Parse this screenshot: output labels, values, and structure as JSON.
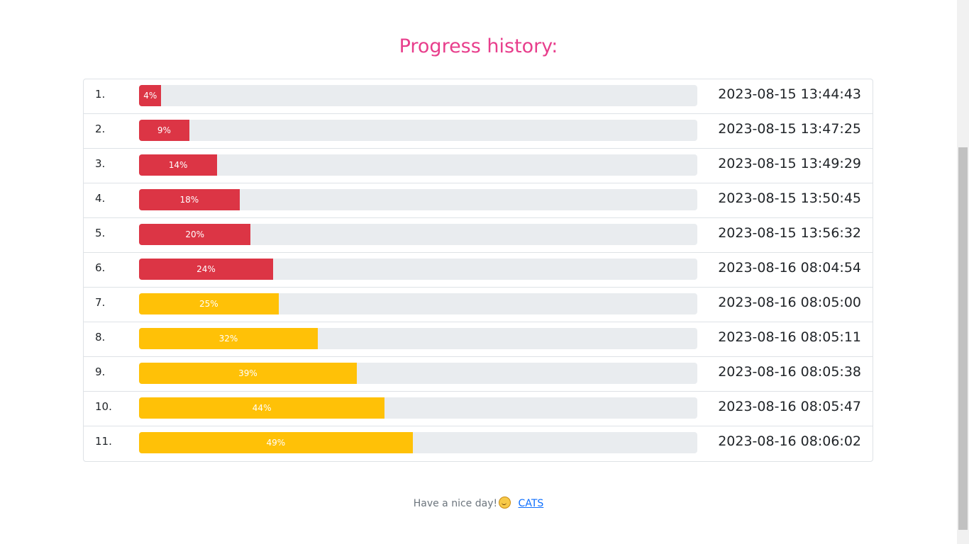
{
  "title": "Progress history:",
  "colors": {
    "low": "#dc3545",
    "mid": "#ffc107"
  },
  "rows": [
    {
      "index": "1.",
      "label": "4%",
      "value": 4,
      "tone": "low",
      "time": "2023-08-15 13:44:43"
    },
    {
      "index": "2.",
      "label": "9%",
      "value": 9,
      "tone": "low",
      "time": "2023-08-15 13:47:25"
    },
    {
      "index": "3.",
      "label": "14%",
      "value": 14,
      "tone": "low",
      "time": "2023-08-15 13:49:29"
    },
    {
      "index": "4.",
      "label": "18%",
      "value": 18,
      "tone": "low",
      "time": "2023-08-15 13:50:45"
    },
    {
      "index": "5.",
      "label": "20%",
      "value": 20,
      "tone": "low",
      "time": "2023-08-15 13:56:32"
    },
    {
      "index": "6.",
      "label": "24%",
      "value": 24,
      "tone": "low",
      "time": "2023-08-16 08:04:54"
    },
    {
      "index": "7.",
      "label": "25%",
      "value": 25,
      "tone": "mid",
      "time": "2023-08-16 08:05:00"
    },
    {
      "index": "8.",
      "label": "32%",
      "value": 32,
      "tone": "mid",
      "time": "2023-08-16 08:05:11"
    },
    {
      "index": "9.",
      "label": "39%",
      "value": 39,
      "tone": "mid",
      "time": "2023-08-16 08:05:38"
    },
    {
      "index": "10.",
      "label": "44%",
      "value": 44,
      "tone": "mid",
      "time": "2023-08-16 08:05:47"
    },
    {
      "index": "11.",
      "label": "49%",
      "value": 49,
      "tone": "mid",
      "time": "2023-08-16 08:06:02"
    }
  ],
  "footer": {
    "text": "Have a nice day!",
    "emoji_icon": "smiling-face-icon",
    "link_label": "CATS"
  }
}
